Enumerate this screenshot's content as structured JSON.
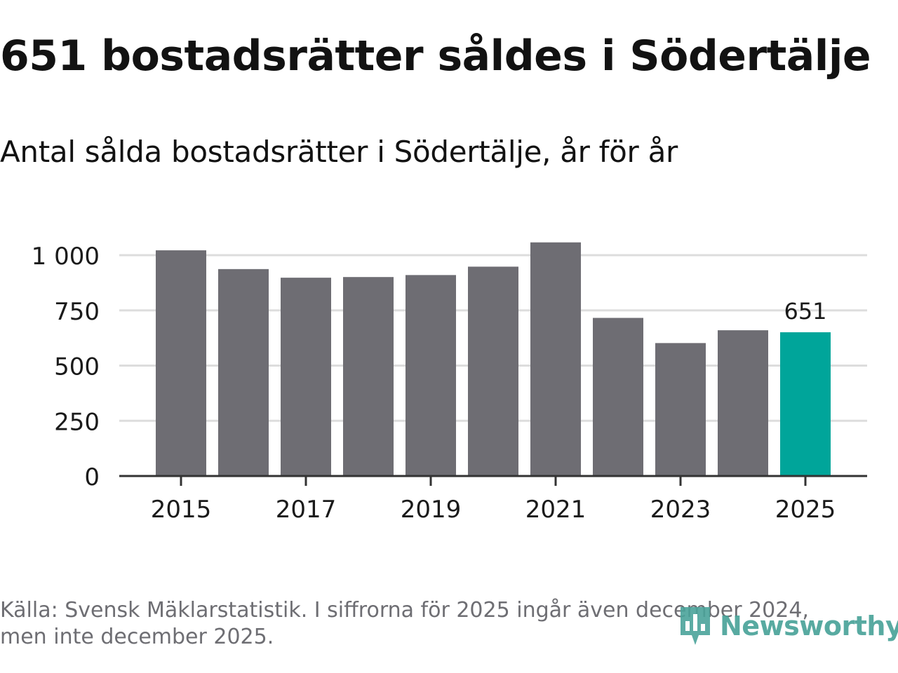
{
  "header": {
    "title": "651 bostadsrätter såldes i Södertälje",
    "subtitle": "Antal sålda bostadsrätter i Södertälje, år för år"
  },
  "footer": {
    "source": "Källa: Svensk Mäklarstatistik. I siffrorna för 2025 ingår även december 2024, men inte december 2025.",
    "brand": "Newsworthy",
    "brand_icon": "newsworthy-logo-icon"
  },
  "colors": {
    "bar": "#6e6d73",
    "highlight": "#00a59a",
    "grid": "#dddddd",
    "axis": "#333333",
    "text": "#1a1a1a",
    "brand": "#4aa39a"
  },
  "chart_data": {
    "type": "bar",
    "title": "651 bostadsrätter såldes i Södertälje",
    "subtitle": "Antal sålda bostadsrätter i Södertälje, år för år",
    "xlabel": "",
    "ylabel": "",
    "categories": [
      "2015",
      "2016",
      "2017",
      "2018",
      "2019",
      "2020",
      "2021",
      "2022",
      "2023",
      "2024",
      "2025"
    ],
    "values": [
      1022,
      937,
      898,
      901,
      910,
      948,
      1058,
      716,
      602,
      660,
      651
    ],
    "x_tick_labels": [
      "2015",
      "2017",
      "2019",
      "2021",
      "2023",
      "2025"
    ],
    "y_ticks": [
      0,
      250,
      500,
      750,
      1000
    ],
    "y_tick_labels": [
      "0",
      "250",
      "500",
      "750",
      "1 000"
    ],
    "ylim": [
      0,
      1100
    ],
    "grid": true,
    "highlight_category": "2025",
    "annotations": [
      {
        "category": "2025",
        "text": "651"
      }
    ]
  }
}
